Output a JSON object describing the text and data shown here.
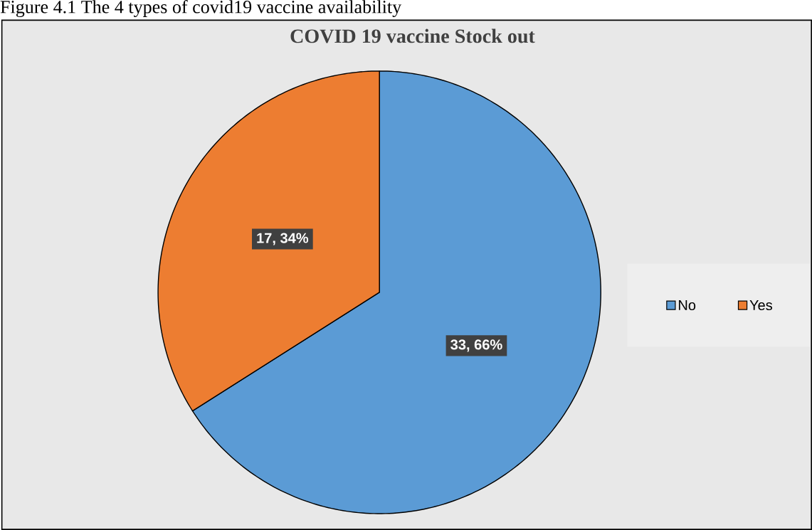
{
  "chart_data": {
    "type": "pie",
    "title": "COVID 19 vaccine Stock out",
    "categories": [
      "No",
      "Yes"
    ],
    "values": [
      33,
      17
    ],
    "colors": [
      "#5b9bd5",
      "#ed7d31"
    ],
    "value_labels": [
      "33, 66%",
      "17, 34%"
    ],
    "legend": "right",
    "annotations": [
      "Figure 4.1 The 4 types of covid19 vaccine availability"
    ]
  }
}
